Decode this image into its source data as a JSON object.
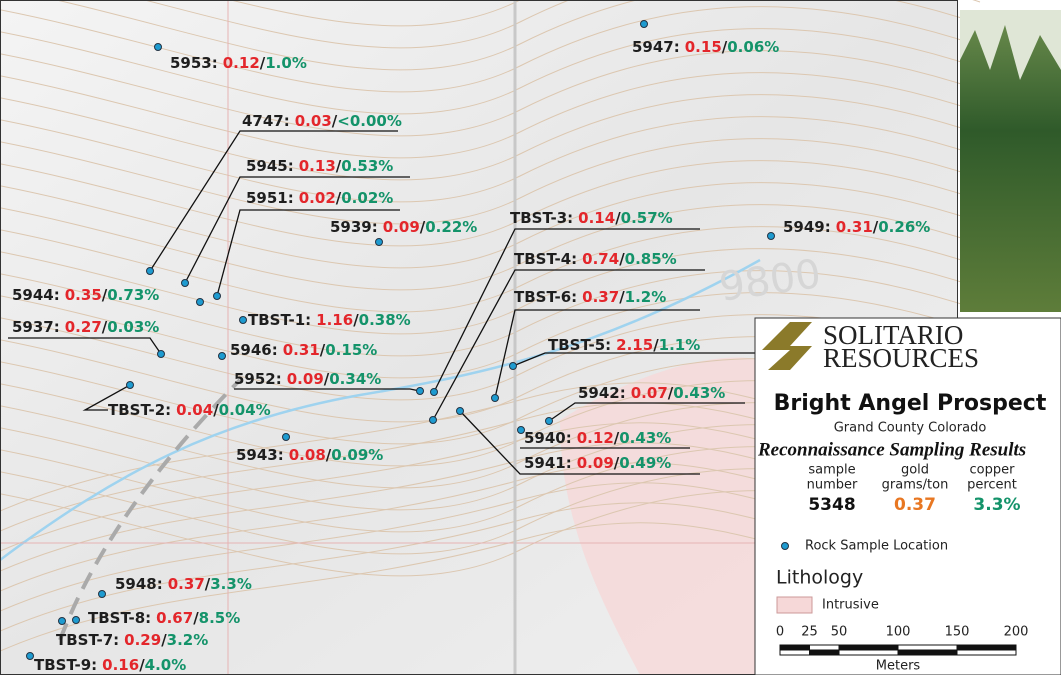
{
  "map": {
    "separator": "/",
    "contour_label": "9800",
    "samples": [
      {
        "id": "5953:",
        "gold": "0.12",
        "copper": "1.0%"
      },
      {
        "id": "5947:",
        "gold": "0.15",
        "copper": "0.06%"
      },
      {
        "id": "4747:",
        "gold": "0.03",
        "copper": "<0.00%"
      },
      {
        "id": "5945:",
        "gold": "0.13",
        "copper": "0.53%"
      },
      {
        "id": "5951:",
        "gold": "0.02",
        "copper": "0.02%"
      },
      {
        "id": "5939:",
        "gold": "0.09",
        "copper": "0.22%"
      },
      {
        "id": "5949:",
        "gold": "0.31",
        "copper": "0.26%"
      },
      {
        "id": "5944:",
        "gold": "0.35",
        "copper": "0.73%"
      },
      {
        "id": "5937:",
        "gold": "0.27",
        "copper": "0.03%"
      },
      {
        "id": "TBST-1:",
        "gold": "1.16",
        "copper": "0.38%"
      },
      {
        "id": "5946:",
        "gold": "0.31",
        "copper": "0.15%"
      },
      {
        "id": "5952:",
        "gold": "0.09",
        "copper": "0.34%"
      },
      {
        "id": "TBST-2:",
        "gold": "0.04",
        "copper": "0.04%"
      },
      {
        "id": "5943:",
        "gold": "0.08",
        "copper": "0.09%"
      },
      {
        "id": "TBST-3:",
        "gold": "0.14",
        "copper": "0.57%"
      },
      {
        "id": "TBST-4:",
        "gold": "0.74",
        "copper": "0.85%"
      },
      {
        "id": "TBST-6:",
        "gold": "0.37",
        "copper": "1.2%"
      },
      {
        "id": "TBST-5:",
        "gold": "2.15",
        "copper": "1.1%"
      },
      {
        "id": "5942:",
        "gold": "0.07",
        "copper": "0.43%"
      },
      {
        "id": "5940:",
        "gold": "0.12",
        "copper": "0.43%"
      },
      {
        "id": "5941:",
        "gold": "0.09",
        "copper": "0.49%"
      },
      {
        "id": "5948:",
        "gold": "0.37",
        "copper": "3.3%"
      },
      {
        "id": "TBST-8:",
        "gold": "0.67",
        "copper": "8.5%"
      },
      {
        "id": "TBST-7:",
        "gold": "0.29",
        "copper": "3.2%"
      },
      {
        "id": "TBST-9:",
        "gold": "0.16",
        "copper": "4.0%"
      }
    ]
  },
  "legend": {
    "logo_line1": "SOLITARIO",
    "logo_line2": "RESOURCES",
    "title": "Bright Angel Prospect",
    "subtitle": "Grand County Colorado",
    "heading": "Reconnaissance Sampling Results",
    "columns": [
      {
        "line1": "sample",
        "line2": "number",
        "example": "5348"
      },
      {
        "line1": "gold",
        "line2": "grams/ton",
        "example": "0.37"
      },
      {
        "line1": "copper",
        "line2": "percent",
        "example": "3.3%"
      }
    ],
    "dot_label": "Rock Sample Location",
    "lithology_title": "Lithology",
    "intrusive_label": "Intrusive",
    "scale_ticks": [
      0,
      25,
      50,
      100,
      150,
      200
    ],
    "scale_unit": "Meters"
  }
}
